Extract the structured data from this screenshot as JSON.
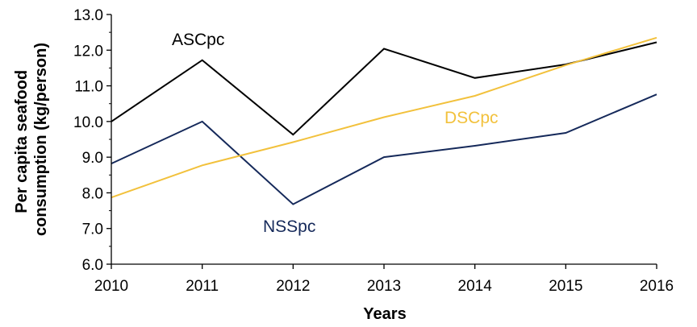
{
  "chart_data": {
    "type": "line",
    "title": "",
    "xlabel": "Years",
    "ylabel": "Per capita seafood consumption (kg/person)",
    "ylabel_lines": [
      "Per capita seafood",
      "consumption (kg/person)"
    ],
    "x": [
      2010,
      2011,
      2012,
      2013,
      2014,
      2015,
      2016
    ],
    "x_tick_labels": [
      "2010",
      "2011",
      "2012",
      "2013",
      "2014",
      "2015",
      "2016"
    ],
    "ylim": [
      6.0,
      13.0
    ],
    "y_tick_labels": [
      "6.0",
      "7.0",
      "8.0",
      "9.0",
      "10.0",
      "11.0",
      "12.0",
      "13.0"
    ],
    "grid": false,
    "legend": "inline labels",
    "series": [
      {
        "name": "ASCpc",
        "color": "#000000",
        "values": [
          10.0,
          11.72,
          9.63,
          12.04,
          11.22,
          11.6,
          12.22
        ]
      },
      {
        "name": "NSSpc",
        "color": "#15295a",
        "values": [
          8.82,
          10.0,
          7.68,
          9.0,
          9.32,
          9.68,
          10.76
        ]
      },
      {
        "name": "DSCpc",
        "color": "#f2c13c",
        "values": [
          7.87,
          8.77,
          9.42,
          10.12,
          10.72,
          11.58,
          12.35
        ]
      }
    ]
  }
}
